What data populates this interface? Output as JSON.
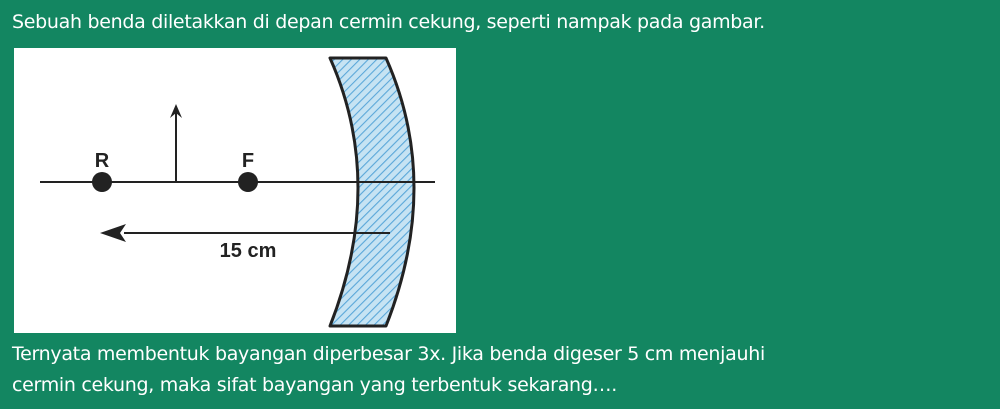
{
  "intro_text": "Sebuah benda diletakkan di depan cermin cekung, seperti nampak pada gambar.",
  "diagram": {
    "label_r": "R",
    "label_f": "F",
    "distance_label": "15 cm",
    "colors": {
      "mirror_fill": "#c6e3f3",
      "mirror_hatch": "#5aa7d9",
      "line": "#222222"
    }
  },
  "body_text": {
    "line1": "Ternyata membentuk bayangan diperbesar 3x. Jika benda digeser 5 cm menjauhi",
    "line2": "cermin cekung, maka sifat bayangan yang terbentuk sekarang…."
  },
  "colors": {
    "background": "#138661",
    "text": "#ffffff"
  }
}
